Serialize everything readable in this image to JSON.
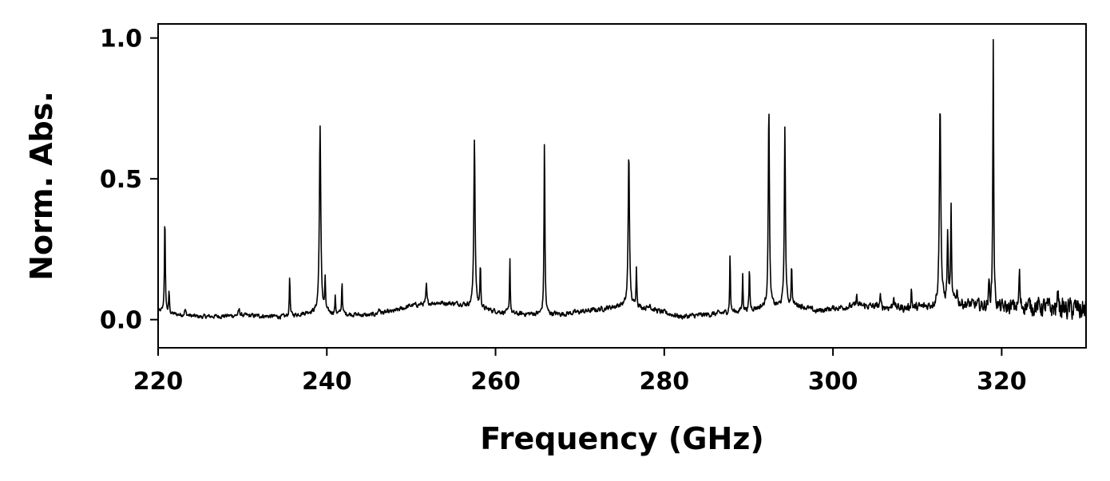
{
  "chart_data": {
    "type": "line",
    "title": "",
    "xlabel": "Frequency (GHz)",
    "ylabel": "Norm. Abs.",
    "xlim": [
      220,
      330
    ],
    "ylim": [
      -0.1,
      1.05
    ],
    "xticks": [
      220,
      240,
      260,
      280,
      300,
      320
    ],
    "xtick_labels": [
      "220",
      "240",
      "260",
      "280",
      "300",
      "320"
    ],
    "yticks": [
      0.0,
      0.5,
      1.0
    ],
    "ytick_labels": [
      "0.0",
      "0.5",
      "1.0"
    ],
    "grid": false,
    "line_color": "#000000",
    "series": [
      {
        "baseline": [
          [
            220.0,
            0.03
          ],
          [
            221.5,
            0.02
          ],
          [
            225,
            0.01
          ],
          [
            230,
            0.015
          ],
          [
            235,
            0.01
          ],
          [
            238,
            0.025
          ],
          [
            242,
            0.02
          ],
          [
            245,
            0.015
          ],
          [
            248,
            0.03
          ],
          [
            250,
            0.05
          ],
          [
            253,
            0.06
          ],
          [
            256,
            0.055
          ],
          [
            258,
            0.04
          ],
          [
            262,
            0.02
          ],
          [
            268,
            0.02
          ],
          [
            272,
            0.035
          ],
          [
            275,
            0.05
          ],
          [
            278,
            0.04
          ],
          [
            282,
            0.01
          ],
          [
            286,
            0.02
          ],
          [
            289,
            0.03
          ],
          [
            292,
            0.045
          ],
          [
            296,
            0.05
          ],
          [
            298,
            0.03
          ],
          [
            300,
            0.04
          ],
          [
            303,
            0.05
          ],
          [
            306,
            0.045
          ],
          [
            309,
            0.04
          ],
          [
            311,
            0.045
          ],
          [
            314,
            0.06
          ],
          [
            317,
            0.05
          ],
          [
            320,
            0.04
          ],
          [
            323,
            0.05
          ],
          [
            326,
            0.04
          ],
          [
            330,
            0.035
          ]
        ],
        "peaks": [
          [
            220.8,
            0.34,
            0.06
          ],
          [
            221.3,
            0.08,
            0.05
          ],
          [
            223.2,
            0.02,
            0.1
          ],
          [
            229.6,
            0.02,
            0.1
          ],
          [
            235.6,
            0.15,
            0.05
          ],
          [
            239.2,
            0.66,
            0.1
          ],
          [
            239.8,
            0.11,
            0.06
          ],
          [
            241.0,
            0.06,
            0.05
          ],
          [
            241.8,
            0.12,
            0.05
          ],
          [
            246.2,
            0.02,
            0.1
          ],
          [
            251.8,
            0.07,
            0.06
          ],
          [
            257.5,
            0.6,
            0.09
          ],
          [
            258.2,
            0.15,
            0.06
          ],
          [
            261.7,
            0.2,
            0.05
          ],
          [
            265.8,
            0.63,
            0.06
          ],
          [
            275.8,
            0.55,
            0.09
          ],
          [
            276.7,
            0.14,
            0.06
          ],
          [
            278.3,
            0.02,
            0.1
          ],
          [
            287.8,
            0.21,
            0.05
          ],
          [
            289.3,
            0.13,
            0.05
          ],
          [
            290.1,
            0.15,
            0.05
          ],
          [
            292.4,
            0.72,
            0.08
          ],
          [
            294.3,
            0.63,
            0.08
          ],
          [
            295.1,
            0.14,
            0.06
          ],
          [
            302.8,
            0.04,
            0.06
          ],
          [
            305.6,
            0.04,
            0.06
          ],
          [
            307.2,
            0.05,
            0.06
          ],
          [
            309.3,
            0.07,
            0.06
          ],
          [
            312.7,
            0.71,
            0.1
          ],
          [
            313.6,
            0.25,
            0.07
          ],
          [
            314.0,
            0.33,
            0.06
          ],
          [
            314.7,
            0.06,
            0.06
          ],
          [
            318.5,
            0.08,
            0.07
          ],
          [
            319.0,
            0.96,
            0.06
          ],
          [
            322.1,
            0.14,
            0.05
          ],
          [
            326.7,
            0.08,
            0.06
          ]
        ],
        "noise_amplitude": [
          [
            220,
            0.006
          ],
          [
            300,
            0.008
          ],
          [
            315,
            0.015
          ],
          [
            320,
            0.02
          ],
          [
            330,
            0.035
          ]
        ]
      }
    ]
  }
}
